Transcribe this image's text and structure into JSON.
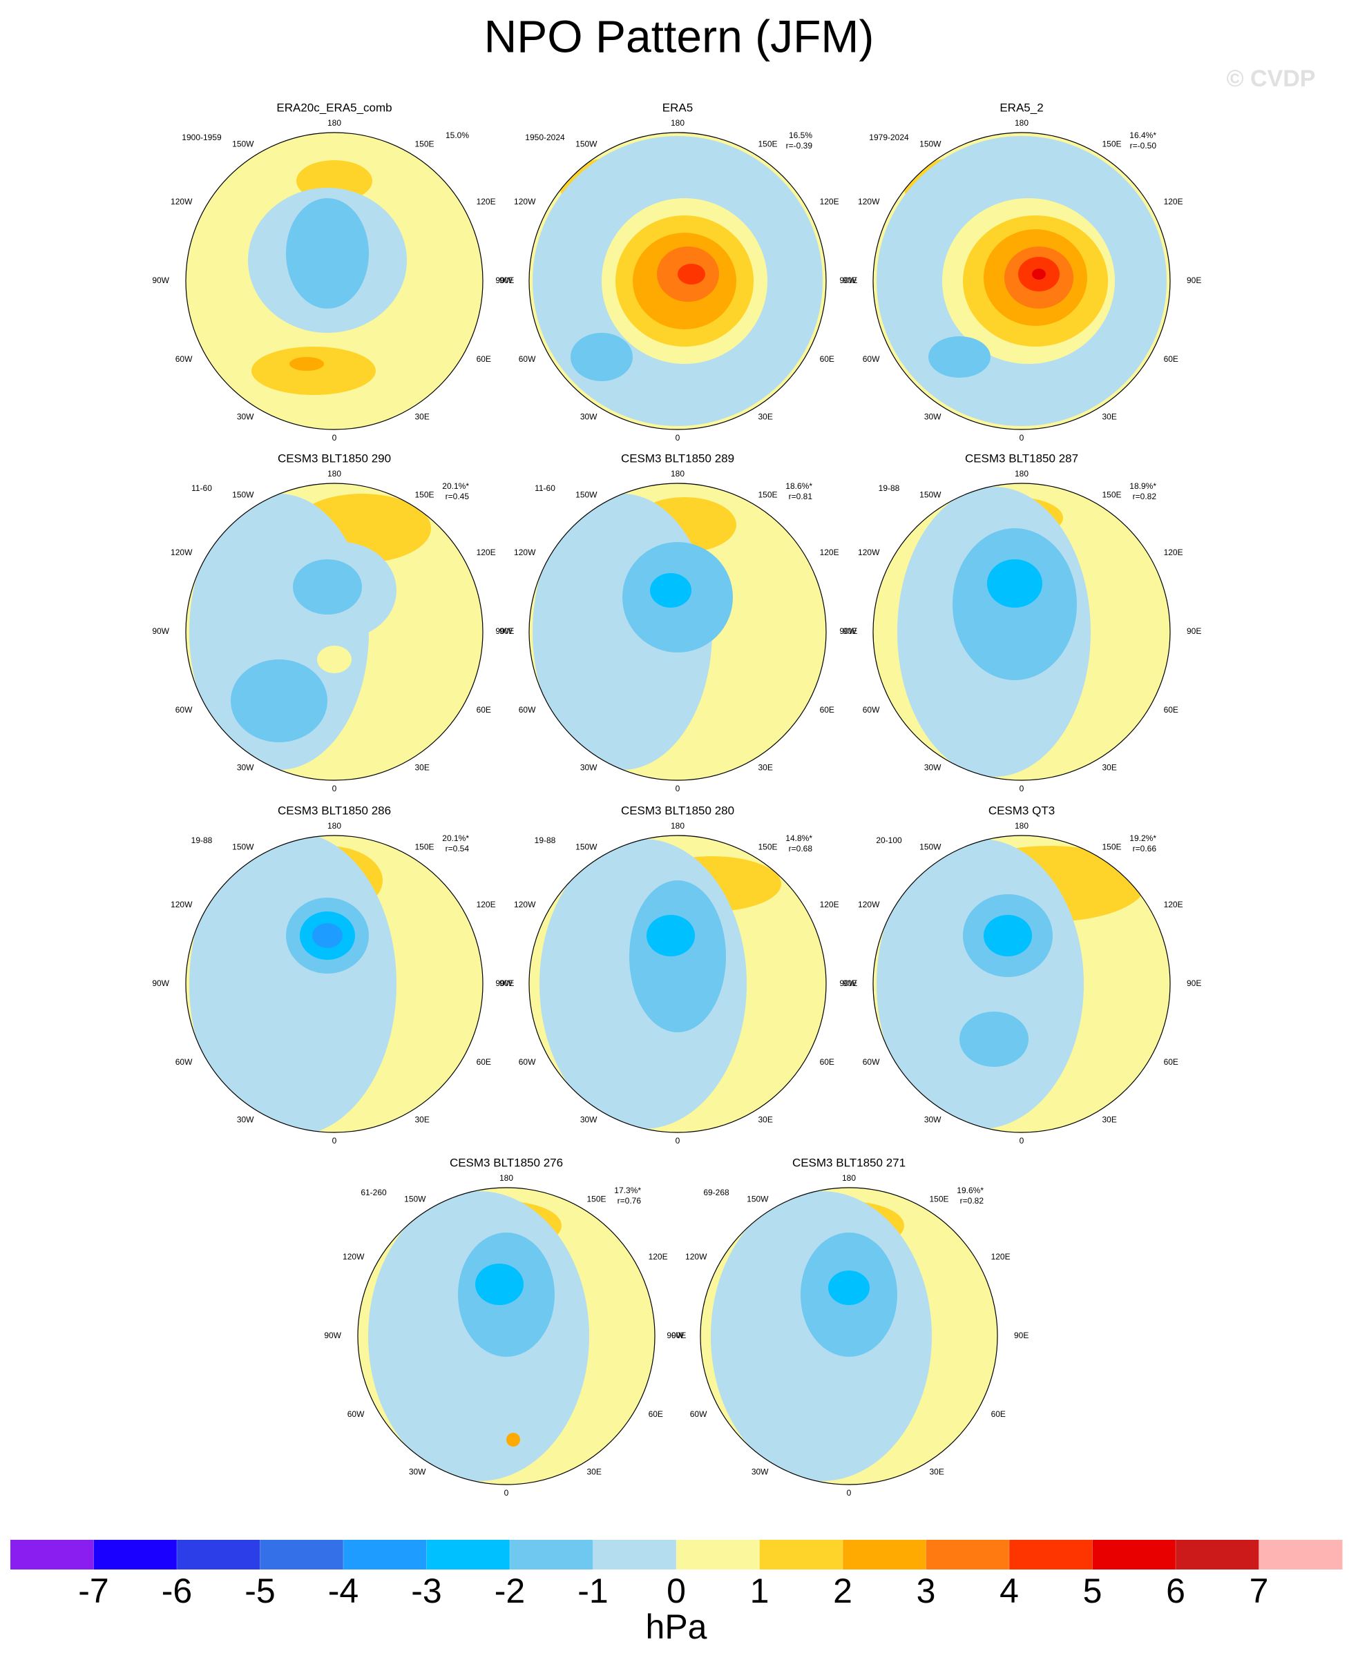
{
  "chart_data": {
    "type": "polar-map-panels",
    "title": "NPO Pattern (JFM)",
    "watermark": "© CVDP",
    "longitude_labels": [
      "180",
      "150E",
      "120E",
      "90E",
      "60E",
      "30E",
      "0",
      "30W",
      "60W",
      "90W",
      "120W",
      "150W"
    ],
    "panels": [
      {
        "title": "ERA20c_ERA5_comb",
        "period": "1900-1959",
        "pct": "15.0%"
      },
      {
        "title": "ERA5",
        "period": "1950-2024",
        "pct": "16.5%",
        "r": "r=-0.39"
      },
      {
        "title": "ERA5_2",
        "period": "1979-2024",
        "pct": "16.4%*",
        "r": "r=-0.50"
      },
      {
        "title": "CESM3 BLT1850 290",
        "period": "11-60",
        "pct": "20.1%*",
        "r": "r=0.45"
      },
      {
        "title": "CESM3 BLT1850 289",
        "period": "11-60",
        "pct": "18.6%*",
        "r": "r=0.81"
      },
      {
        "title": "CESM3 BLT1850 287",
        "period": "19-88",
        "pct": "18.9%*",
        "r": "r=0.82"
      },
      {
        "title": "CESM3 BLT1850 286",
        "period": "19-88",
        "pct": "20.1%*",
        "r": "r=0.54"
      },
      {
        "title": "CESM3 BLT1850 280",
        "period": "19-88",
        "pct": "14.8%*",
        "r": "r=0.68"
      },
      {
        "title": "CESM3 QT3",
        "period": "20-100",
        "pct": "19.2%*",
        "r": "r=0.66"
      },
      {
        "title": "CESM3 BLT1850 276",
        "period": "61-260",
        "pct": "17.3%*",
        "r": "r=0.76"
      },
      {
        "title": "CESM3 BLT1850 271",
        "period": "69-268",
        "pct": "19.6%*",
        "r": "r=0.82"
      }
    ],
    "colorbar": {
      "label": "hPa",
      "lim": [
        -8,
        8
      ],
      "ticks": [
        -7,
        -6,
        -5,
        -4,
        -3,
        -2,
        -1,
        0,
        1,
        2,
        3,
        4,
        5,
        6,
        7
      ],
      "colors": [
        "#8a1ef0",
        "#1a00ff",
        "#2b3ee8",
        "#3470e8",
        "#1e9cff",
        "#00c0ff",
        "#6fc8f0",
        "#b4ddf0",
        "#fbf79c",
        "#ffd42a",
        "#ffaa00",
        "#ff7a10",
        "#ff3500",
        "#e80000",
        "#cc1a1a",
        "#ffb4b4"
      ]
    }
  }
}
